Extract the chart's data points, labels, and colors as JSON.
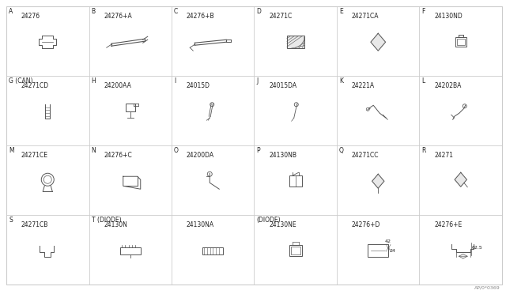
{
  "bg_color": "#ffffff",
  "grid_color": "#cccccc",
  "line_color": "#555555",
  "text_color": "#222222",
  "cells": [
    {
      "label": "A",
      "part": "24276",
      "row": 0,
      "col": 0
    },
    {
      "label": "B",
      "part": "24276+A",
      "row": 0,
      "col": 1
    },
    {
      "label": "C",
      "part": "24276+B",
      "row": 0,
      "col": 2
    },
    {
      "label": "D",
      "part": "24271C",
      "row": 0,
      "col": 3
    },
    {
      "label": "E",
      "part": "24271CA",
      "row": 0,
      "col": 4
    },
    {
      "label": "F",
      "part": "24130ND",
      "row": 0,
      "col": 5
    },
    {
      "label": "G (CAN)",
      "part": "24271CD",
      "row": 1,
      "col": 0
    },
    {
      "label": "H",
      "part": "24200AA",
      "row": 1,
      "col": 1
    },
    {
      "label": "I",
      "part": "24015D",
      "row": 1,
      "col": 2
    },
    {
      "label": "J",
      "part": "24015DA",
      "row": 1,
      "col": 3
    },
    {
      "label": "K",
      "part": "24221A",
      "row": 1,
      "col": 4
    },
    {
      "label": "L",
      "part": "24202BA",
      "row": 1,
      "col": 5
    },
    {
      "label": "M",
      "part": "24271CE",
      "row": 2,
      "col": 0
    },
    {
      "label": "N",
      "part": "24276+C",
      "row": 2,
      "col": 1
    },
    {
      "label": "O",
      "part": "24200DA",
      "row": 2,
      "col": 2
    },
    {
      "label": "P",
      "part": "24130NB",
      "row": 2,
      "col": 3
    },
    {
      "label": "Q",
      "part": "24271CC",
      "row": 2,
      "col": 4
    },
    {
      "label": "R",
      "part": "24271",
      "row": 2,
      "col": 5
    },
    {
      "label": "S",
      "part": "24271CB",
      "row": 3,
      "col": 0
    },
    {
      "label": "T (DIODE)",
      "part": "24130N",
      "row": 3,
      "col": 1
    },
    {
      "label": "",
      "part": "24130NA",
      "row": 3,
      "col": 2
    },
    {
      "label": "(DIODE)",
      "part": "24130NE",
      "row": 3,
      "col": 3
    },
    {
      "label": "",
      "part": "24276+D",
      "row": 3,
      "col": 4
    },
    {
      "label": "",
      "part": "24276+E",
      "row": 3,
      "col": 5
    }
  ],
  "num_rows": 4,
  "num_cols": 6,
  "footer": "AP/0*0369"
}
